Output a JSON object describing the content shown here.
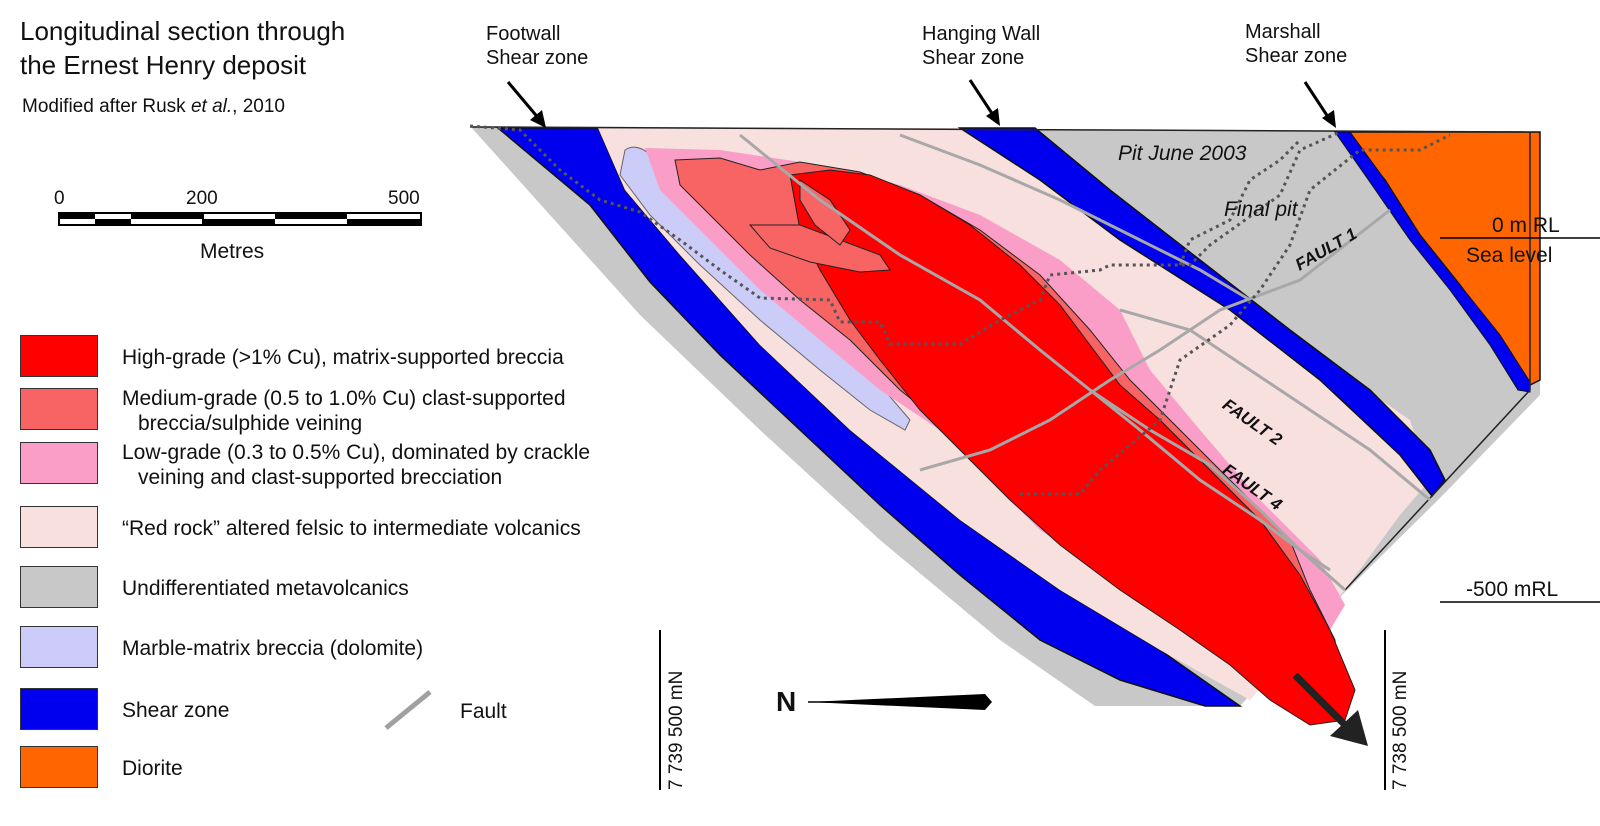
{
  "title_line1": "Longitudinal section through",
  "title_line2": "the Ernest Henry deposit",
  "subtitle_prefix": "Modified after Rusk ",
  "subtitle_italic": "et al.",
  "subtitle_suffix": ", 2010",
  "scale": {
    "ticks": [
      "0",
      "200",
      "500"
    ],
    "unit": "Metres"
  },
  "legend": [
    {
      "label": "High-grade (>1% Cu), matrix-supported breccia",
      "label2": "",
      "color": "#ff0000"
    },
    {
      "label": "Medium-grade (0.5 to 1.0% Cu) clast-supported",
      "label2": "breccia/sulphide veining",
      "color": "#f86464"
    },
    {
      "label": "Low-grade (0.3 to 0.5% Cu), dominated by crackle",
      "label2": "veining and  clast-supported brecciation",
      "color": "#fa9ec8"
    },
    {
      "label": "“Red rock” altered felsic to intermediate volcanics",
      "label2": "",
      "color": "#f8e0de"
    },
    {
      "label": "Undifferentiated metavolcanics",
      "label2": "",
      "color": "#c8c8c8"
    },
    {
      "label": "Marble-matrix breccia (dolomite)",
      "label2": "",
      "color": "#ccccf8"
    },
    {
      "label": "Shear zone",
      "label2": "",
      "color": "#0000ee"
    },
    {
      "label": "Diorite",
      "label2": "",
      "color": "#ff6600"
    }
  ],
  "fault_legend": "Fault",
  "labels": {
    "footwall_1": "Footwall",
    "footwall_2": "Shear zone",
    "hanging_1": "Hanging Wall",
    "hanging_2": "Shear zone",
    "marshall_1": "Marshall",
    "marshall_2": "Shear zone",
    "pit_2003": "Pit June 2003",
    "final_pit": "Final pit",
    "fault1": "FAULT 1",
    "fault2": "FAULT 2",
    "fault4": "FAULT 4",
    "rl0": "0 m RL",
    "sea_level": "Sea level",
    "rl500": "-500 mRL",
    "north": "N",
    "mn_left": "7 739 500 mN",
    "mn_right": "7 738 500 mN"
  }
}
